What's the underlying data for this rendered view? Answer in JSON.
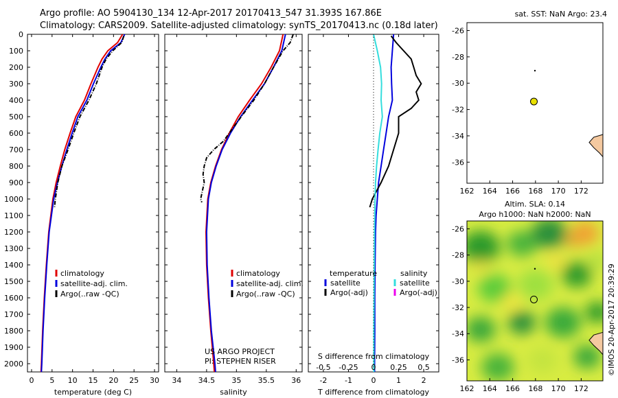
{
  "header": {
    "title_line1": "Argo profile: AO 5904130_134 12-Apr-2017 20170413_547 31.393S 167.86E",
    "title_line2": "Climatology: CARS2009. Satellite-adjusted climatology: synTS_20170413.nc (0.18d later)"
  },
  "credit": "©IMOS 20-Apr-2017 20:39:29",
  "colors": {
    "climatology": "#e00000",
    "satellite": "#0000dd",
    "argo": "#000000",
    "sal_satellite": "#33dddd",
    "sal_argo": "#ee00ee",
    "marker": "#e8e000",
    "land": "#f4c9a0"
  },
  "chart_data": [
    {
      "type": "line",
      "panel": "temperature",
      "xlabel": "temperature (deg C)",
      "xlim": [
        -1,
        31
      ],
      "xticks": [
        0,
        5,
        10,
        15,
        20,
        25,
        30
      ],
      "ylim": [
        0,
        2050
      ],
      "yticks": [
        0,
        100,
        200,
        300,
        400,
        500,
        600,
        700,
        800,
        900,
        1000,
        1100,
        1200,
        1300,
        1400,
        1500,
        1600,
        1700,
        1800,
        1900,
        2000
      ],
      "legend": [
        "climatology",
        "satellite-adj. clim.",
        "Argo(..raw -QC)"
      ],
      "series": [
        {
          "name": "climatology",
          "color": "#e00000",
          "y": [
            0,
            50,
            100,
            150,
            200,
            300,
            400,
            500,
            600,
            700,
            800,
            900,
            1000,
            1200,
            1400,
            1600,
            1800,
            2000,
            2050
          ],
          "x": [
            22.2,
            21.0,
            18.6,
            17.2,
            16.2,
            14.5,
            12.9,
            10.8,
            9.4,
            8.1,
            7.0,
            6.0,
            5.2,
            4.2,
            3.6,
            3.1,
            2.7,
            2.4,
            2.3
          ]
        },
        {
          "name": "satellite-adj. clim.",
          "color": "#0000dd",
          "y": [
            0,
            50,
            100,
            150,
            200,
            300,
            400,
            500,
            600,
            700,
            800,
            900,
            1000,
            1200,
            1400,
            1600,
            1800,
            2000,
            2050
          ],
          "x": [
            22.7,
            21.8,
            19.3,
            17.9,
            16.9,
            15.1,
            13.5,
            11.3,
            9.9,
            8.6,
            7.4,
            6.3,
            5.4,
            4.3,
            3.7,
            3.2,
            2.8,
            2.5,
            2.4
          ]
        },
        {
          "name": "Argo(..raw -QC)",
          "color": "#000000",
          "y": [
            10,
            50,
            100,
            150,
            200,
            300,
            400,
            500,
            600,
            700,
            800,
            900,
            1000,
            1050
          ],
          "x": [
            22.5,
            22.0,
            19.8,
            18.2,
            17.2,
            15.8,
            14.0,
            11.8,
            10.3,
            8.9,
            7.4,
            6.4,
            5.8,
            5.6
          ]
        }
      ]
    },
    {
      "type": "line",
      "panel": "salinity",
      "xlabel": "salinity",
      "xlim": [
        33.8,
        36.1
      ],
      "xticks": [
        34,
        34.5,
        35,
        35.5,
        36
      ],
      "ylim": [
        0,
        2050
      ],
      "legend": [
        "climatology",
        "satellite-adj. clim.",
        "Argo(..raw -QC)"
      ],
      "annotation": [
        "US ARGO PROJECT",
        "PI: STEPHEN RISER"
      ],
      "series": [
        {
          "name": "climatology",
          "color": "#e00000",
          "y": [
            0,
            100,
            200,
            300,
            400,
            500,
            600,
            700,
            800,
            900,
            1000,
            1200,
            1400,
            1600,
            1800,
            2000,
            2050
          ],
          "x": [
            35.78,
            35.72,
            35.58,
            35.42,
            35.22,
            35.03,
            34.88,
            34.75,
            34.65,
            34.57,
            34.52,
            34.49,
            34.5,
            34.53,
            34.57,
            34.62,
            34.63
          ]
        },
        {
          "name": "satellite-adj. clim.",
          "color": "#0000dd",
          "y": [
            0,
            100,
            200,
            300,
            400,
            500,
            600,
            700,
            800,
            900,
            1000,
            1200,
            1400,
            1600,
            1800,
            2000,
            2050
          ],
          "x": [
            35.82,
            35.76,
            35.62,
            35.47,
            35.27,
            35.07,
            34.9,
            34.76,
            34.66,
            34.58,
            34.53,
            34.5,
            34.51,
            34.54,
            34.58,
            34.64,
            34.65
          ]
        },
        {
          "name": "Argo(..raw -QC)",
          "color": "#000000",
          "y": [
            0,
            50,
            100,
            150,
            200,
            300,
            400,
            500,
            550,
            600,
            650,
            700,
            750,
            800,
            850,
            900,
            950,
            1000,
            1020
          ],
          "x": [
            35.95,
            35.9,
            35.78,
            35.7,
            35.62,
            35.47,
            35.29,
            35.08,
            34.98,
            34.88,
            34.78,
            34.62,
            34.5,
            34.46,
            34.44,
            34.46,
            34.43,
            34.4,
            34.42
          ]
        }
      ]
    },
    {
      "type": "line",
      "panel": "difference",
      "xlabel": "T difference from climatology",
      "xlabel_top": "S difference from climatology",
      "xlim": [
        -2.6,
        2.6
      ],
      "xticks": [
        -2,
        -1,
        0,
        1,
        2
      ],
      "xticks_top": [
        "-0.5",
        "-0.25",
        "0",
        "0.25",
        "0.5"
      ],
      "ylim": [
        0,
        2050
      ],
      "legend_headers": [
        "temperature",
        "salinity"
      ],
      "legend": [
        "satellite",
        "Argo(-adj)",
        "satellite",
        "Argo(-adj)"
      ],
      "series": [
        {
          "name": "temperature satellite",
          "color": "#0000dd",
          "y": [
            0,
            100,
            200,
            300,
            400,
            500,
            600,
            700,
            800,
            900,
            1000,
            1100,
            1200,
            1400,
            1600,
            1800,
            2000,
            2050
          ],
          "x": [
            0.8,
            0.75,
            0.7,
            0.72,
            0.75,
            0.6,
            0.5,
            0.4,
            0.3,
            0.2,
            0.15,
            0.1,
            0.08,
            0.06,
            0.05,
            0.05,
            0.04,
            0.04
          ]
        },
        {
          "name": "temperature Argo(-adj)",
          "color": "#000000",
          "y": [
            10,
            50,
            100,
            150,
            200,
            250,
            300,
            350,
            400,
            450,
            500,
            600,
            700,
            800,
            900,
            1000,
            1050
          ],
          "x": [
            0.7,
            0.9,
            1.2,
            1.5,
            1.6,
            1.7,
            1.9,
            1.7,
            1.8,
            1.5,
            1.0,
            1.0,
            0.8,
            0.6,
            0.3,
            -0.05,
            -0.15
          ]
        },
        {
          "name": "salinity satellite",
          "color": "#33dddd",
          "y": [
            0,
            100,
            200,
            300,
            400,
            500,
            600,
            700,
            800,
            900,
            1000,
            1200,
            1400,
            1600,
            1800,
            2000,
            2050
          ],
          "x": [
            0.0,
            0.15,
            0.28,
            0.32,
            0.3,
            0.35,
            0.25,
            0.18,
            0.12,
            0.08,
            0.06,
            0.04,
            0.03,
            0.02,
            0.01,
            0.01,
            0.01
          ]
        }
      ]
    }
  ],
  "map_sst": {
    "title": "sat. SST: NaN  Argo: 23.4",
    "xticks": [
      "162",
      "164",
      "166",
      "168",
      "170",
      "172"
    ],
    "yticks": [
      "-26",
      "-28",
      "-30",
      "-32",
      "-34",
      "-36"
    ],
    "marker": {
      "lon": 167.86,
      "lat": -31.393
    }
  },
  "map_sla": {
    "title_line1": "Altim. SLA: 0.14",
    "title_line2": "Argo h1000: NaN h2000: NaN",
    "xticks": [
      "162",
      "164",
      "166",
      "168",
      "170",
      "172"
    ],
    "yticks": [
      "-26",
      "-28",
      "-30",
      "-32",
      "-34",
      "-36"
    ],
    "marker": {
      "lon": 167.86,
      "lat": -31.393
    }
  }
}
